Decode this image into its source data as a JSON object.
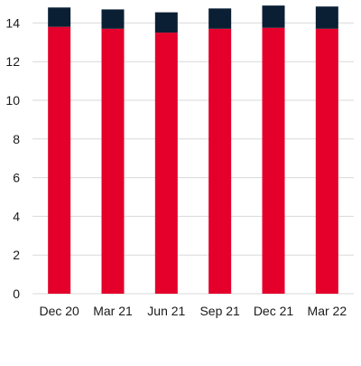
{
  "chart_data": {
    "type": "bar",
    "stacked": true,
    "title": "",
    "xlabel": "",
    "ylabel": "",
    "categories": [
      "Dec 20",
      "Mar 21",
      "Jun 21",
      "Sep 21",
      "Dec 21",
      "Mar 22"
    ],
    "series": [
      {
        "color": "#e4002b",
        "values": [
          13.8,
          13.7,
          13.5,
          13.7,
          13.75,
          13.7
        ]
      },
      {
        "color": "#0a1f33",
        "values": [
          1.0,
          1.0,
          1.05,
          1.05,
          1.15,
          1.15
        ]
      }
    ],
    "ylim": [
      0,
      15
    ],
    "yticks": [
      0,
      2,
      4,
      6,
      8,
      10,
      12,
      14
    ],
    "grid": true,
    "legend": "none"
  }
}
